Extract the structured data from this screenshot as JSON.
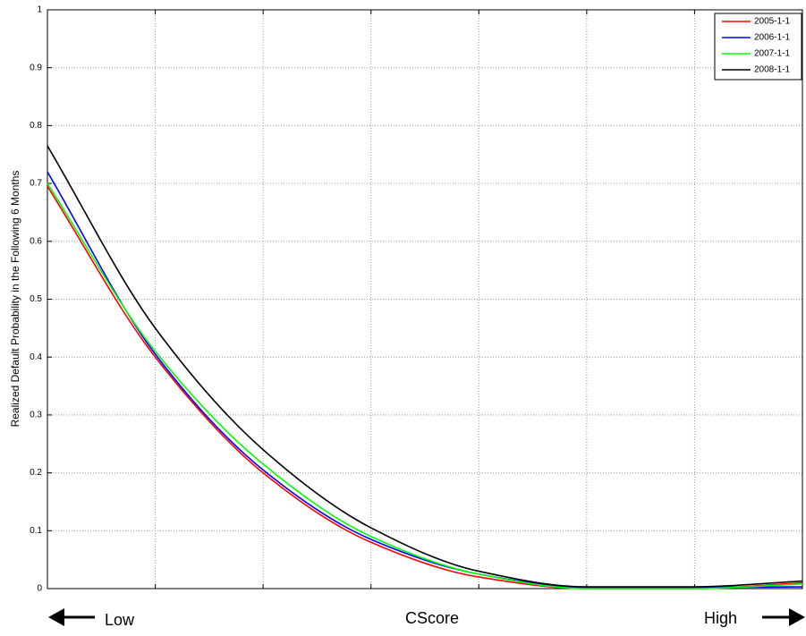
{
  "chart_data": {
    "type": "line",
    "y_label": "Realized Default Probability in the Following 6 Months",
    "x_label": "CScore",
    "x_low_label": "Low",
    "x_high_label": "High",
    "categories": [
      null,
      null,
      null,
      null,
      null,
      null,
      null,
      null
    ],
    "series": [
      {
        "name": "2005-1-1",
        "color": "#ff0000",
        "values": [
          0.695,
          0.4,
          0.2,
          0.08,
          0.02,
          0.0,
          0.0,
          0.01
        ]
      },
      {
        "name": "2006-1-1",
        "color": "#0000ff",
        "values": [
          0.72,
          0.405,
          0.205,
          0.085,
          0.025,
          0.002,
          0.002,
          0.003
        ]
      },
      {
        "name": "2007-1-1",
        "color": "#00ff00",
        "values": [
          0.7,
          0.41,
          0.215,
          0.09,
          0.025,
          0.0,
          0.0,
          0.008
        ]
      },
      {
        "name": "2008-1-1",
        "color": "#000000",
        "values": [
          0.765,
          0.45,
          0.24,
          0.105,
          0.03,
          0.003,
          0.003,
          0.013
        ]
      }
    ],
    "ylim": [
      0,
      1
    ],
    "yticks": [
      0,
      0.1,
      0.2,
      0.3,
      0.4,
      0.5,
      0.6,
      0.7,
      0.8,
      0.9,
      1
    ],
    "grid": true,
    "legend": "top-right"
  }
}
